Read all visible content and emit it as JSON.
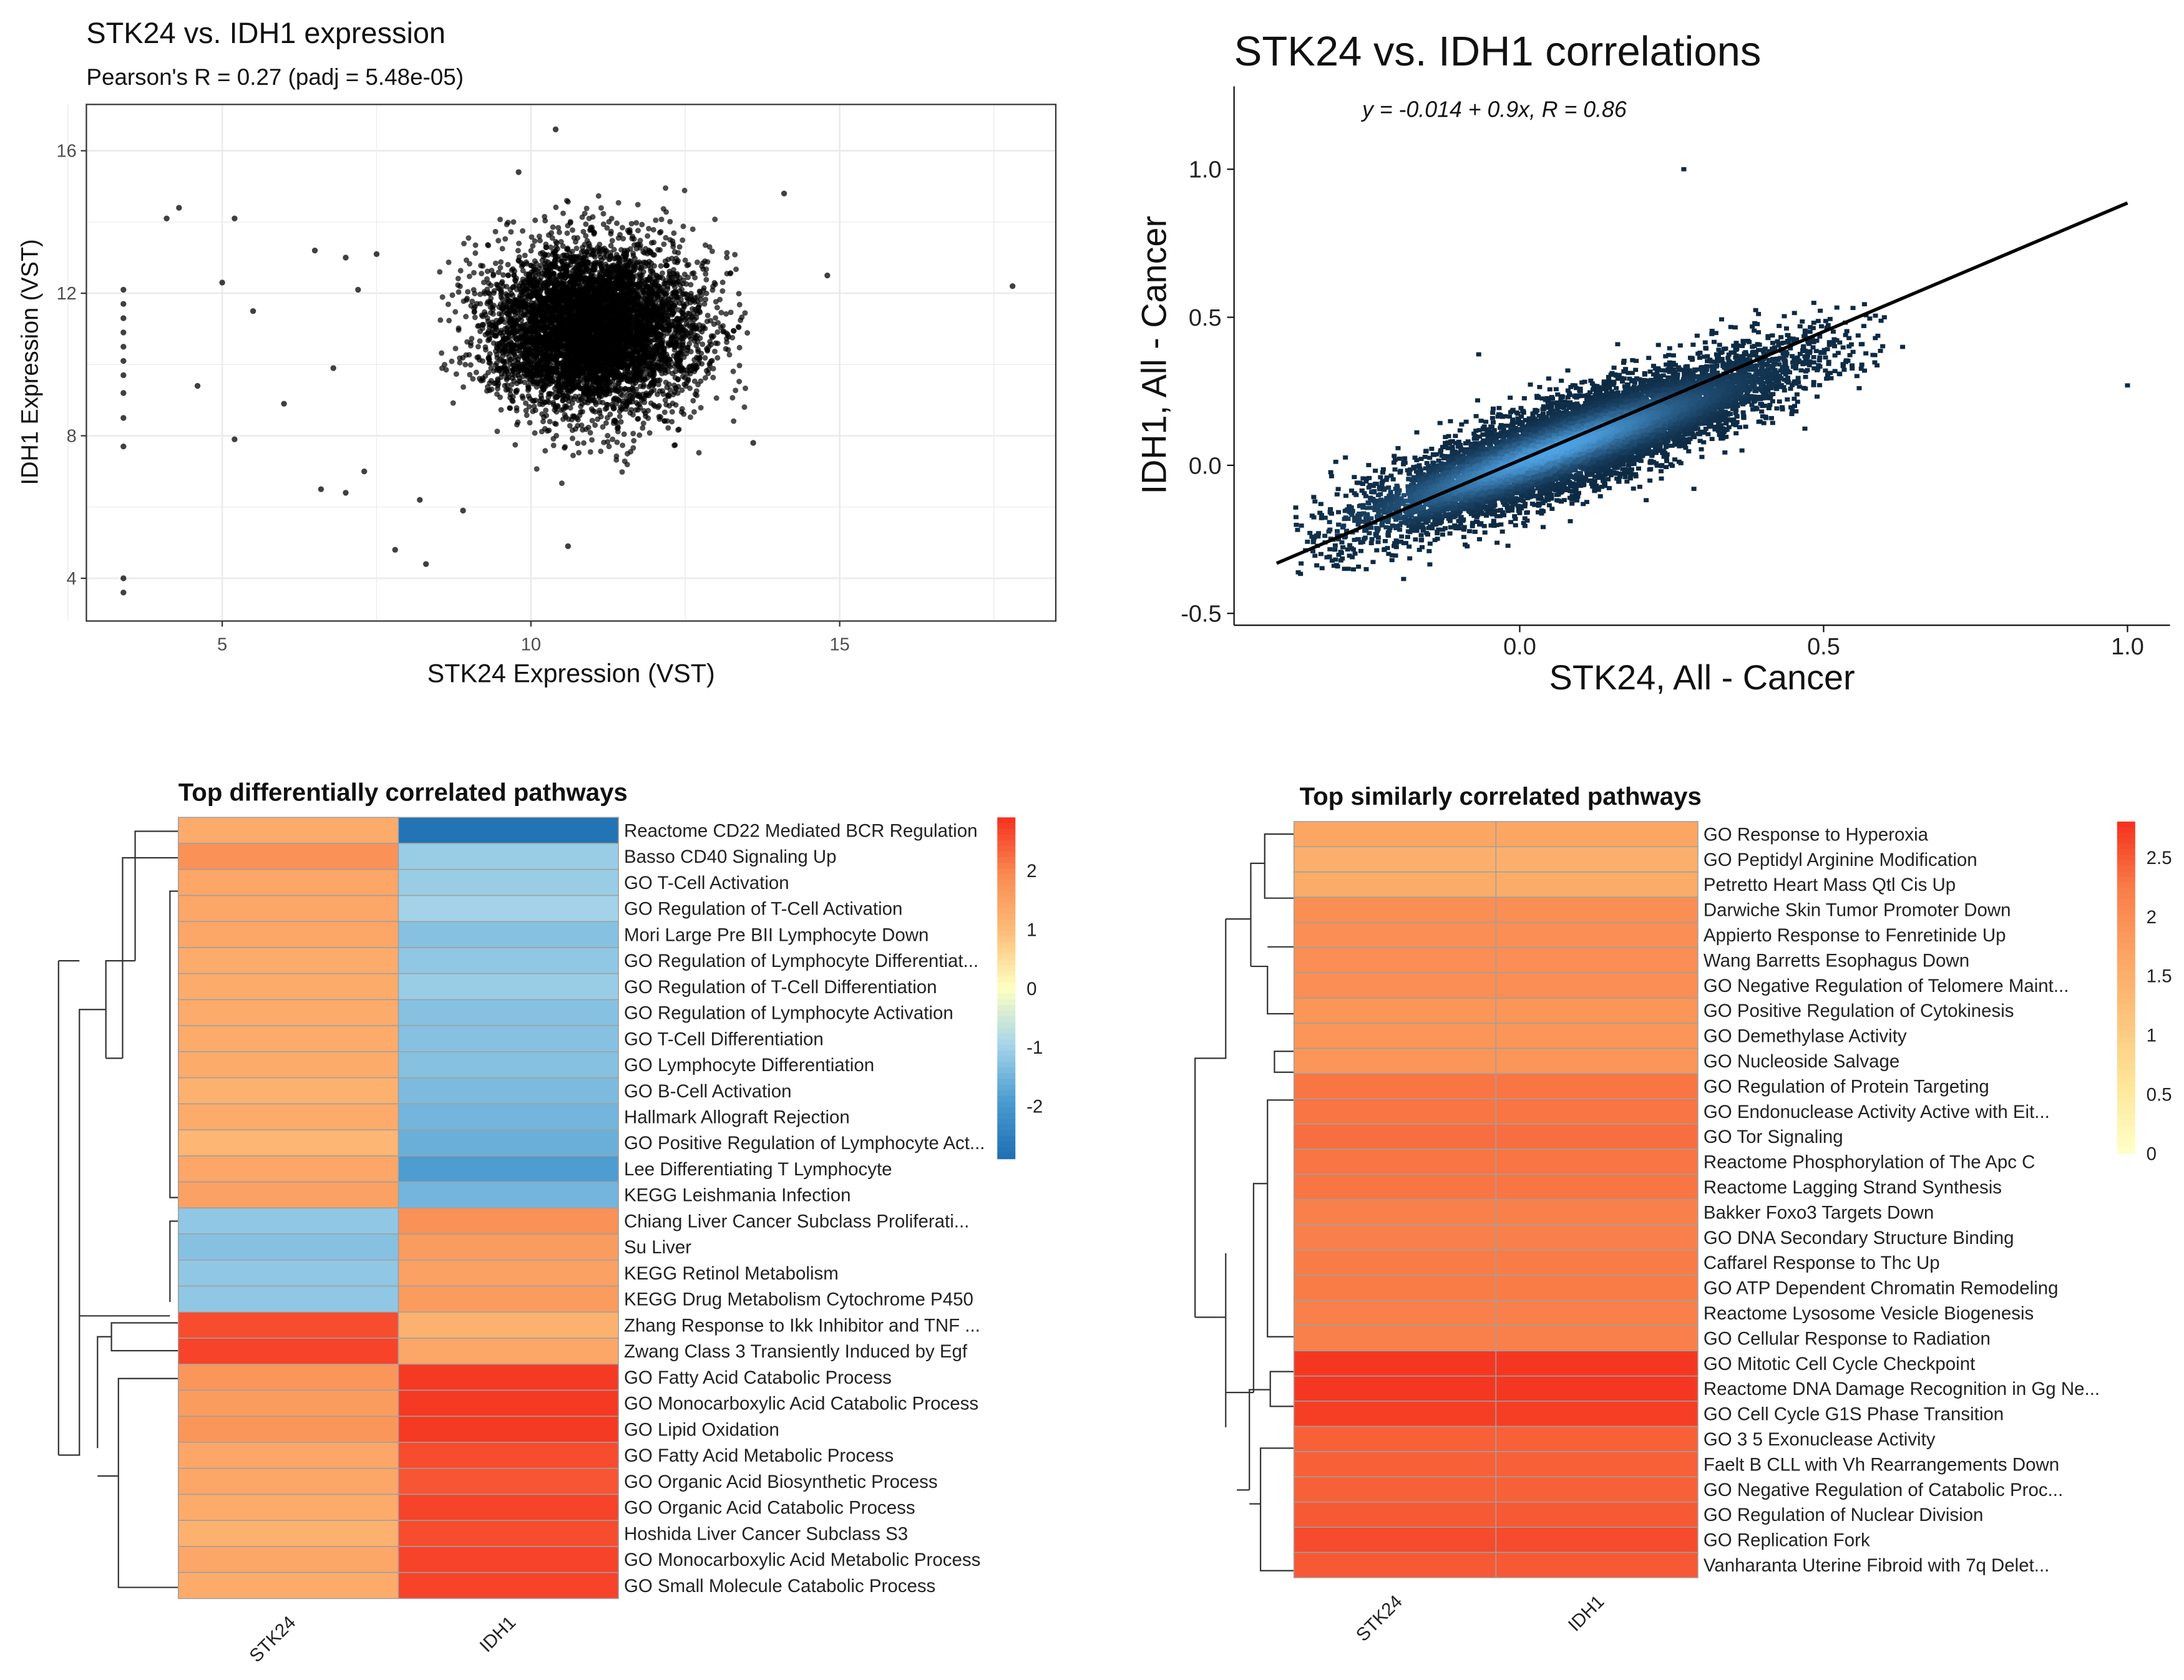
{
  "chart_data": [
    {
      "type": "scatter",
      "title": "STK24 vs. IDH1 expression",
      "subtitle": "Pearson's R = 0.27 (padj = 5.48e-05)",
      "xlabel": "STK24 Expression (VST)",
      "ylabel": "IDH1 Expression (VST)",
      "xlim": [
        2.8,
        18.5
      ],
      "ylim": [
        2.8,
        17.3
      ],
      "xticks": [
        "5",
        "10",
        "15"
      ],
      "xtick_values": [
        5,
        10,
        15
      ],
      "yticks": [
        "4",
        "8",
        "12",
        "16"
      ],
      "ytick_values": [
        4,
        8,
        12,
        16
      ],
      "grid": true,
      "point_color": "#000000",
      "main_cloud": {
        "x_center": 11,
        "y_center": 11,
        "x_range": [
          8.5,
          13.6
        ],
        "y_range": [
          6.5,
          16
        ]
      },
      "points": [
        [
          3.4,
          4.0
        ],
        [
          3.4,
          3.6
        ],
        [
          3.4,
          7.7
        ],
        [
          3.4,
          8.5
        ],
        [
          3.4,
          9.2
        ],
        [
          3.4,
          9.7
        ],
        [
          3.4,
          10.1
        ],
        [
          3.4,
          10.5
        ],
        [
          3.4,
          10.9
        ],
        [
          3.4,
          11.3
        ],
        [
          3.4,
          11.7
        ],
        [
          3.4,
          12.1
        ],
        [
          4.1,
          14.1
        ],
        [
          4.3,
          14.4
        ],
        [
          5.2,
          14.1
        ],
        [
          5.0,
          12.3
        ],
        [
          5.5,
          11.5
        ],
        [
          4.6,
          9.4
        ],
        [
          5.2,
          7.9
        ],
        [
          6.0,
          8.9
        ],
        [
          6.5,
          13.2
        ],
        [
          6.8,
          9.9
        ],
        [
          7.0,
          13.0
        ],
        [
          7.2,
          12.1
        ],
        [
          7.5,
          13.1
        ],
        [
          6.6,
          6.5
        ],
        [
          7.0,
          6.4
        ],
        [
          7.3,
          7.0
        ],
        [
          7.8,
          4.8
        ],
        [
          8.3,
          4.4
        ],
        [
          10.6,
          4.9
        ],
        [
          14.8,
          12.5
        ],
        [
          17.8,
          12.2
        ],
        [
          14.1,
          14.8
        ],
        [
          13.6,
          7.8
        ],
        [
          9.8,
          15.4
        ],
        [
          10.4,
          16.6
        ],
        [
          8.2,
          6.2
        ],
        [
          8.9,
          5.9
        ]
      ]
    },
    {
      "type": "scatter",
      "title": "STK24 vs. IDH1 correlations",
      "annotation": "y = -0.014 + 0.9x,   R = 0.86",
      "xlabel": "STK24, All - Cancer",
      "ylabel": "IDH1, All - Cancer",
      "xlim": [
        -0.47,
        1.07
      ],
      "ylim": [
        -0.54,
        1.28
      ],
      "xticks": [
        "0.0",
        "0.5",
        "1.0"
      ],
      "xtick_values": [
        0,
        0.5,
        1
      ],
      "yticks": [
        "-0.5",
        "0.0",
        "0.5",
        "1.0"
      ],
      "ytick_values": [
        -0.5,
        0,
        0.5,
        1
      ],
      "fit": {
        "intercept": -0.014,
        "slope": 0.9,
        "x_range": [
          -0.4,
          1.0
        ]
      },
      "density_colors": [
        "#0d2a44",
        "#56b1f7"
      ],
      "grid": false,
      "outliers": [
        [
          0.27,
          1.0
        ],
        [
          0.63,
          0.4
        ],
        [
          1.0,
          0.27
        ],
        [
          0.6,
          0.5
        ]
      ]
    },
    {
      "type": "heatmap",
      "title": "Top differentially correlated pathways",
      "columns": [
        "STK24",
        "IDH1"
      ],
      "colorbar_ticks": [
        "2",
        "1",
        "0",
        "-1",
        "-2"
      ],
      "colorbar_values": [
        2,
        1,
        0,
        -1,
        -2
      ],
      "range": [
        -2.9,
        2.9
      ],
      "colors": [
        "#1f6fb2",
        "#4a9bd0",
        "#a6d5ea",
        "#ffffc0",
        "#fdbd78",
        "#fa8a52",
        "#f5301e"
      ],
      "rows": [
        {
          "label": "Reactome CD22 Mediated BCR Regulation",
          "values": [
            1.3,
            -2.8
          ]
        },
        {
          "label": "Basso CD40 Signaling Up",
          "values": [
            1.8,
            -1.1
          ]
        },
        {
          "label": "GO T-Cell Activation",
          "values": [
            1.4,
            -1.1
          ]
        },
        {
          "label": "GO Regulation of T-Cell Activation",
          "values": [
            1.4,
            -1.0
          ]
        },
        {
          "label": "Mori Large Pre BII Lymphocyte Down",
          "values": [
            1.4,
            -1.3
          ]
        },
        {
          "label": "GO Regulation of Lymphocyte Differentiat...",
          "values": [
            1.3,
            -1.2
          ]
        },
        {
          "label": "GO Regulation of T-Cell Differentiation",
          "values": [
            1.3,
            -1.1
          ]
        },
        {
          "label": "GO Regulation of Lymphocyte Activation",
          "values": [
            1.3,
            -1.3
          ]
        },
        {
          "label": "GO T-Cell Differentiation",
          "values": [
            1.3,
            -1.3
          ]
        },
        {
          "label": "GO Lymphocyte Differentiation",
          "values": [
            1.3,
            -1.3
          ]
        },
        {
          "label": "GO B-Cell Activation",
          "values": [
            1.2,
            -1.4
          ]
        },
        {
          "label": "Hallmark Allograft Rejection",
          "values": [
            1.3,
            -1.5
          ]
        },
        {
          "label": "GO Positive Regulation of Lymphocyte Act...",
          "values": [
            1.1,
            -1.6
          ]
        },
        {
          "label": "Lee Differentiating T Lymphocyte",
          "values": [
            1.4,
            -1.9
          ]
        },
        {
          "label": "KEGG Leishmania Infection",
          "values": [
            1.5,
            -1.5
          ]
        },
        {
          "label": "Chiang Liver Cancer Subclass Proliferati...",
          "values": [
            -1.2,
            1.8
          ]
        },
        {
          "label": "Su Liver",
          "values": [
            -1.3,
            1.6
          ]
        },
        {
          "label": "KEGG Retinol Metabolism",
          "values": [
            -1.2,
            1.5
          ]
        },
        {
          "label": "KEGG Drug Metabolism Cytochrome P450",
          "values": [
            -1.2,
            1.6
          ]
        },
        {
          "label": "Zhang Response to Ikk Inhibitor and TNF ...",
          "values": [
            2.6,
            1.2
          ]
        },
        {
          "label": "Zwang Class 3 Transiently Induced by Egf",
          "values": [
            2.7,
            1.4
          ]
        },
        {
          "label": "GO Fatty Acid Catabolic Process",
          "values": [
            1.7,
            2.8
          ]
        },
        {
          "label": "GO Monocarboxylic Acid Catabolic Process",
          "values": [
            1.6,
            2.8
          ]
        },
        {
          "label": "GO Lipid Oxidation",
          "values": [
            1.7,
            2.8
          ]
        },
        {
          "label": "GO Fatty Acid Metabolic Process",
          "values": [
            1.4,
            2.6
          ]
        },
        {
          "label": "GO Organic Acid Biosynthetic Process",
          "values": [
            1.4,
            2.5
          ]
        },
        {
          "label": "GO Organic Acid Catabolic Process",
          "values": [
            1.3,
            2.7
          ]
        },
        {
          "label": "Hoshida Liver Cancer Subclass S3",
          "values": [
            1.2,
            2.6
          ]
        },
        {
          "label": "GO Monocarboxylic Acid Metabolic Process",
          "values": [
            1.4,
            2.7
          ]
        },
        {
          "label": "GO Small Molecule Catabolic Process",
          "values": [
            1.3,
            2.7
          ]
        }
      ]
    },
    {
      "type": "heatmap",
      "title": "Top similarly correlated pathways",
      "columns": [
        "STK24",
        "IDH1"
      ],
      "colorbar_ticks": [
        "2.5",
        "2",
        "1.5",
        "1",
        "0.5",
        "0"
      ],
      "colorbar_values": [
        2.5,
        2,
        1.5,
        1,
        0.5,
        0
      ],
      "range": [
        0,
        2.8
      ],
      "colors": [
        "#ffffc8",
        "#fee79a",
        "#fdc57e",
        "#fca463",
        "#f97d48",
        "#f5301e"
      ],
      "rows": [
        {
          "label": "GO Response to Hyperoxia",
          "values": [
            1.65,
            1.65
          ]
        },
        {
          "label": "GO Peptidyl Arginine Modification",
          "values": [
            1.5,
            1.5
          ]
        },
        {
          "label": "Petretto Heart Mass Qtl Cis Up",
          "values": [
            1.55,
            1.55
          ]
        },
        {
          "label": "Darwiche Skin Tumor Promoter Down",
          "values": [
            2.0,
            2.0
          ]
        },
        {
          "label": "Appierto Response to Fenretinide Up",
          "values": [
            2.0,
            2.0
          ]
        },
        {
          "label": "Wang Barretts Esophagus Down",
          "values": [
            2.0,
            2.0
          ]
        },
        {
          "label": "GO Negative Regulation of Telomere Maint...",
          "values": [
            2.0,
            2.0
          ]
        },
        {
          "label": "GO Positive Regulation of Cytokinesis",
          "values": [
            1.9,
            1.9
          ]
        },
        {
          "label": "GO Demethylase Activity",
          "values": [
            1.9,
            1.9
          ]
        },
        {
          "label": "GO Nucleoside Salvage",
          "values": [
            1.9,
            1.9
          ]
        },
        {
          "label": "GO Regulation of Protein Targeting",
          "values": [
            2.3,
            2.3
          ]
        },
        {
          "label": "GO Endonuclease Activity Active with Eit...",
          "values": [
            2.3,
            2.3
          ]
        },
        {
          "label": "GO Tor Signaling",
          "values": [
            2.35,
            2.35
          ]
        },
        {
          "label": "Reactome Phosphorylation of The Apc C",
          "values": [
            2.3,
            2.3
          ]
        },
        {
          "label": "Reactome Lagging Strand Synthesis",
          "values": [
            2.3,
            2.3
          ]
        },
        {
          "label": "Bakker Foxo3 Targets Down",
          "values": [
            2.2,
            2.2
          ]
        },
        {
          "label": "GO DNA Secondary Structure Binding",
          "values": [
            2.2,
            2.2
          ]
        },
        {
          "label": "Caffarel Response to Thc Up",
          "values": [
            2.25,
            2.25
          ]
        },
        {
          "label": "GO ATP Dependent Chromatin Remodeling",
          "values": [
            2.25,
            2.25
          ]
        },
        {
          "label": "Reactome Lysosome Vesicle Biogenesis",
          "values": [
            2.2,
            2.2
          ]
        },
        {
          "label": "GO Cellular Response to Radiation",
          "values": [
            2.2,
            2.2
          ]
        },
        {
          "label": "GO Mitotic Cell Cycle Checkpoint",
          "values": [
            2.75,
            2.75
          ]
        },
        {
          "label": "Reactome DNA Damage Recognition in Gg Ne...",
          "values": [
            2.75,
            2.75
          ]
        },
        {
          "label": "GO Cell Cycle G1S Phase Transition",
          "values": [
            2.7,
            2.7
          ]
        },
        {
          "label": "GO 3 5 Exonuclease Activity",
          "values": [
            2.45,
            2.45
          ]
        },
        {
          "label": "Faelt B CLL with Vh Rearrangements Down",
          "values": [
            2.45,
            2.45
          ]
        },
        {
          "label": "GO Negative Regulation of Catabolic Proc...",
          "values": [
            2.45,
            2.45
          ]
        },
        {
          "label": "GO Regulation of Nuclear Division",
          "values": [
            2.5,
            2.5
          ]
        },
        {
          "label": "GO Replication Fork",
          "values": [
            2.6,
            2.6
          ]
        },
        {
          "label": "Vanharanta Uterine Fibroid with 7q Delet...",
          "values": [
            2.5,
            2.5
          ]
        }
      ]
    }
  ]
}
